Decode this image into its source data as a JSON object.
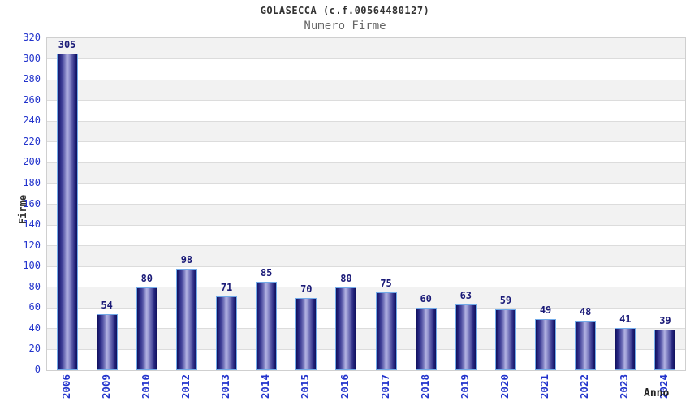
{
  "chart_data": {
    "type": "bar",
    "title": "GOLASECCA (c.f.00564480127)",
    "subtitle": "Numero Firme",
    "xlabel": "Anno",
    "ylabel": "Firme",
    "categories": [
      "2006",
      "2009",
      "2010",
      "2012",
      "2013",
      "2014",
      "2015",
      "2016",
      "2017",
      "2018",
      "2019",
      "2020",
      "2021",
      "2022",
      "2023",
      "2024"
    ],
    "values": [
      305,
      54,
      80,
      98,
      71,
      85,
      70,
      80,
      75,
      60,
      63,
      59,
      49,
      48,
      41,
      39
    ],
    "ylim": [
      0,
      320
    ],
    "ytick_step": 20,
    "yticks": [
      "0",
      "20",
      "40",
      "60",
      "80",
      "100",
      "120",
      "140",
      "160",
      "180",
      "200",
      "220",
      "240",
      "260",
      "280",
      "300",
      "320"
    ],
    "grid": "horizontal-bands-alternating",
    "legend": "none",
    "bar_value_labels": true,
    "colors": {
      "axis_tick_label": "#2233cc",
      "bar_value_label": "#1b1b78",
      "title": "#333333",
      "subtitle": "#666666",
      "axis_title": "#333333",
      "band_gray": "#f2f2f2",
      "band_white": "#ffffff",
      "gridline": "#dcdcdc",
      "plot_border": "#cfcfcf",
      "bar_border": "#72aae8",
      "bar_dark": "#10105c",
      "bar_light": "#b2b2e2"
    }
  }
}
